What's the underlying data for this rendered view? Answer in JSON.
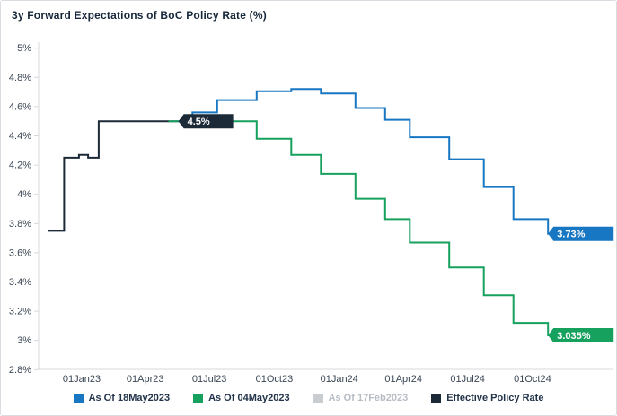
{
  "header": {
    "title": "3y Forward Expectations of BoC Policy Rate (%)"
  },
  "colors": {
    "blue": "#1877c2",
    "green": "#16a15e",
    "gray": "#c9cdd2",
    "dark": "#1c2a38",
    "axis": "#d4d8dd",
    "axis_text": "#3a4654"
  },
  "legend": {
    "items": [
      {
        "label": "As Of 18May2023",
        "color": "#1877c2",
        "disabled": false
      },
      {
        "label": "As Of 04May2023",
        "color": "#16a15e",
        "disabled": false
      },
      {
        "label": "As Of 17Feb2023",
        "color": "#c9cdd2",
        "disabled": true
      },
      {
        "label": "Effective Policy Rate",
        "color": "#1c2a38",
        "disabled": false
      }
    ]
  },
  "chart_data": {
    "type": "line",
    "subtype": "step",
    "title": "3y Forward Expectations of BoC Policy Rate (%)",
    "ylabel": "",
    "xlabel": "",
    "ylim": [
      2.8,
      5.0
    ],
    "grid": false,
    "legend_position": "bottom-center",
    "y_ticks": [
      {
        "v": 5.0,
        "label": "5%"
      },
      {
        "v": 4.8,
        "label": "4.8%"
      },
      {
        "v": 4.6,
        "label": "4.6%"
      },
      {
        "v": 4.4,
        "label": "4.4%"
      },
      {
        "v": 4.2,
        "label": "4.2%"
      },
      {
        "v": 4.0,
        "label": "4%"
      },
      {
        "v": 3.8,
        "label": "3.8%"
      },
      {
        "v": 3.6,
        "label": "3.6%"
      },
      {
        "v": 3.4,
        "label": "3.4%"
      },
      {
        "v": 3.2,
        "label": "3.2%"
      },
      {
        "v": 3.0,
        "label": "3%"
      },
      {
        "v": 2.8,
        "label": "2.8%"
      }
    ],
    "x_ticks": [
      {
        "date": "2023-01-01",
        "label": "01Jan23"
      },
      {
        "date": "2023-04-01",
        "label": "01Apr23"
      },
      {
        "date": "2023-07-01",
        "label": "01Jul23"
      },
      {
        "date": "2023-10-01",
        "label": "01Oct23"
      },
      {
        "date": "2024-01-01",
        "label": "01Jan24"
      },
      {
        "date": "2024-04-01",
        "label": "01Apr24"
      },
      {
        "date": "2024-07-01",
        "label": "01Jul24"
      },
      {
        "date": "2024-10-01",
        "label": "01Oct24"
      }
    ],
    "series": [
      {
        "name": "Effective Policy Rate",
        "color": "#1c2a38",
        "visible": true,
        "stroke_width": 1.8,
        "end": "2023-05-18",
        "end_label": {
          "text": "4.5%",
          "at_date": "2023-05-18",
          "body_width": 55
        },
        "points": [
          [
            "2022-11-14",
            3.75
          ],
          [
            "2022-12-07",
            4.25
          ],
          [
            "2022-12-28",
            4.27
          ],
          [
            "2023-01-10",
            4.25
          ],
          [
            "2023-01-25",
            4.5
          ]
        ]
      },
      {
        "name": "As Of 04May2023",
        "color": "#16a15e",
        "visible": true,
        "stroke_width": 2,
        "end": "2024-12-11",
        "end_label": {
          "text": "3.035%",
          "at_date": "2024-10-23",
          "body_width": 67
        },
        "points": [
          [
            "2023-05-04",
            4.5
          ],
          [
            "2023-09-06",
            4.38
          ],
          [
            "2023-10-25",
            4.27
          ],
          [
            "2023-12-06",
            4.14
          ],
          [
            "2024-01-24",
            3.97
          ],
          [
            "2024-03-06",
            3.83
          ],
          [
            "2024-04-10",
            3.67
          ],
          [
            "2024-06-05",
            3.5
          ],
          [
            "2024-07-24",
            3.31
          ],
          [
            "2024-09-04",
            3.12
          ],
          [
            "2024-10-23",
            3.035
          ]
        ]
      },
      {
        "name": "As Of 18May2023",
        "color": "#1877c2",
        "visible": true,
        "stroke_width": 2,
        "end": "2024-12-11",
        "end_label": {
          "text": "3.73%",
          "at_date": "2024-10-23",
          "body_width": 67
        },
        "points": [
          [
            "2023-05-18",
            4.5
          ],
          [
            "2023-06-07",
            4.56
          ],
          [
            "2023-07-12",
            4.645
          ],
          [
            "2023-09-06",
            4.705
          ],
          [
            "2023-10-25",
            4.72
          ],
          [
            "2023-12-06",
            4.69
          ],
          [
            "2024-01-24",
            4.59
          ],
          [
            "2024-03-06",
            4.51
          ],
          [
            "2024-04-10",
            4.39
          ],
          [
            "2024-06-05",
            4.24
          ],
          [
            "2024-07-24",
            4.05
          ],
          [
            "2024-09-04",
            3.83
          ],
          [
            "2024-10-23",
            3.73
          ]
        ]
      },
      {
        "name": "As Of 17Feb2023",
        "color": "#c9cdd2",
        "visible": false,
        "stroke_width": 2,
        "points": []
      }
    ]
  }
}
